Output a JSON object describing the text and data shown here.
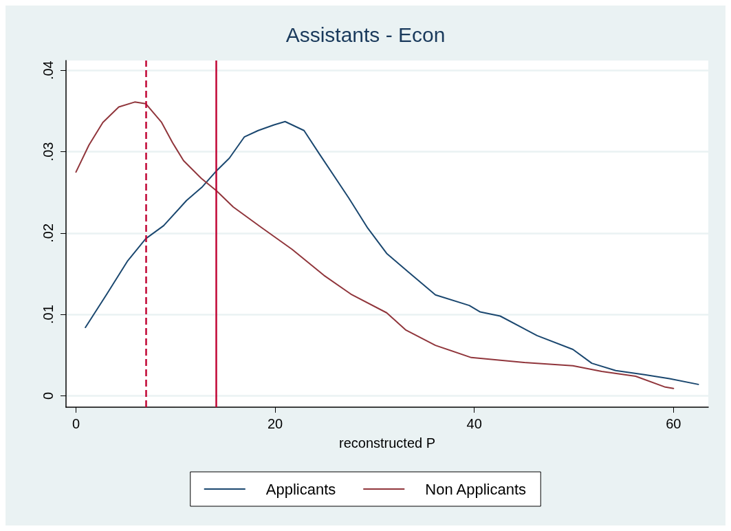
{
  "chart_data": {
    "type": "line",
    "title": "Assistants - Econ",
    "xlabel": "reconstructed P",
    "xlim": [
      -1,
      63.5
    ],
    "ylim": [
      -0.0014,
      0.0412
    ],
    "xticks": [
      0,
      20,
      40,
      60
    ],
    "yticks": [
      {
        "value": 0,
        "label": "0"
      },
      {
        "value": 0.01,
        "label": ".01"
      },
      {
        "value": 0.02,
        "label": ".02"
      },
      {
        "value": 0.03,
        "label": ".03"
      },
      {
        "value": 0.04,
        "label": ".04"
      }
    ],
    "grid": "y",
    "legend": "bottom",
    "marker": "none",
    "line_style": "solid",
    "series": [
      {
        "name": "Applicants",
        "color": "#1a476f",
        "x": [
          0.95,
          3.1,
          5.2,
          7.0,
          8.8,
          11.1,
          12.7,
          14.0,
          15.4,
          16.9,
          18.3,
          19.9,
          21.0,
          22.9,
          24.4,
          27.4,
          29.3,
          31.2,
          33.3,
          36.1,
          39.5,
          40.6,
          42.6,
          46.3,
          49.9,
          51.8,
          54.2,
          57.1,
          59.6,
          62.5
        ],
        "values": [
          0.0084,
          0.0125,
          0.0166,
          0.0193,
          0.0209,
          0.024,
          0.0257,
          0.0275,
          0.0292,
          0.0318,
          0.0326,
          0.0333,
          0.0337,
          0.0326,
          0.0298,
          0.0243,
          0.0206,
          0.0175,
          0.0153,
          0.0124,
          0.0111,
          0.0103,
          0.0098,
          0.0074,
          0.0057,
          0.004,
          0.0031,
          0.0026,
          0.0021,
          0.0014
        ]
      },
      {
        "name": "Non Applicants",
        "color": "#90353b",
        "x": [
          0,
          1.3,
          2.7,
          4.3,
          5.9,
          7.0,
          8.6,
          9.7,
          10.8,
          12.6,
          14.1,
          15.8,
          18.6,
          21.7,
          24.9,
          27.6,
          31.2,
          33.1,
          36.1,
          39.7,
          45.0,
          49.9,
          52.8,
          56.2,
          59.1,
          60.0
        ],
        "values": [
          0.0275,
          0.0308,
          0.0336,
          0.0355,
          0.0361,
          0.0359,
          0.0336,
          0.0311,
          0.0289,
          0.0267,
          0.0252,
          0.0232,
          0.0207,
          0.018,
          0.0148,
          0.0125,
          0.0102,
          0.0081,
          0.0062,
          0.0047,
          0.0041,
          0.0037,
          0.003,
          0.0024,
          0.0011,
          0.0009
        ]
      }
    ],
    "ref_lines": [
      {
        "axis": "x",
        "value": 7.0,
        "color": "#c10534",
        "line_style": "dashed"
      },
      {
        "axis": "x",
        "value": 14.1,
        "color": "#c10534",
        "line_style": "solid"
      }
    ]
  }
}
